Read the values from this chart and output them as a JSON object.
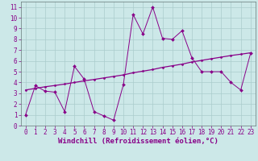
{
  "xlabel": "Windchill (Refroidissement éolien,°C)",
  "ylabel": "",
  "background_color": "#cce8e8",
  "grid_color": "#aacccc",
  "line_color": "#880088",
  "xlim": [
    -0.5,
    23.5
  ],
  "ylim": [
    0,
    11.5
  ],
  "yticks": [
    0,
    1,
    2,
    3,
    4,
    5,
    6,
    7,
    8,
    9,
    10,
    11
  ],
  "xticks": [
    0,
    1,
    2,
    3,
    4,
    5,
    6,
    7,
    8,
    9,
    10,
    11,
    12,
    13,
    14,
    15,
    16,
    17,
    18,
    19,
    20,
    21,
    22,
    23
  ],
  "series1_x": [
    0,
    1,
    2,
    3,
    4,
    5,
    6,
    7,
    8,
    9,
    10,
    11,
    12,
    13,
    14,
    15,
    16,
    17,
    18,
    19,
    20,
    21,
    22,
    23
  ],
  "series1_y": [
    1,
    3.7,
    3.2,
    3.1,
    1.3,
    5.5,
    4.3,
    1.3,
    0.9,
    0.5,
    3.8,
    10.3,
    8.5,
    11.0,
    8.1,
    8.0,
    8.8,
    6.3,
    5.0,
    5.0,
    5.0,
    4.0,
    3.3,
    6.7
  ],
  "series2_x": [
    0,
    1,
    2,
    3,
    4,
    5,
    6,
    7,
    8,
    9,
    10,
    11,
    12,
    13,
    14,
    15,
    16,
    17,
    18,
    19,
    20,
    21,
    22,
    23
  ],
  "series2_y": [
    3.3,
    3.45,
    3.6,
    3.72,
    3.85,
    4.0,
    4.15,
    4.28,
    4.42,
    4.56,
    4.7,
    4.9,
    5.05,
    5.2,
    5.4,
    5.55,
    5.7,
    5.9,
    6.05,
    6.2,
    6.35,
    6.5,
    6.62,
    6.75
  ],
  "xlabel_fontsize": 6.5,
  "tick_fontsize": 5.5,
  "marker_size": 2.0,
  "linewidth": 0.7
}
